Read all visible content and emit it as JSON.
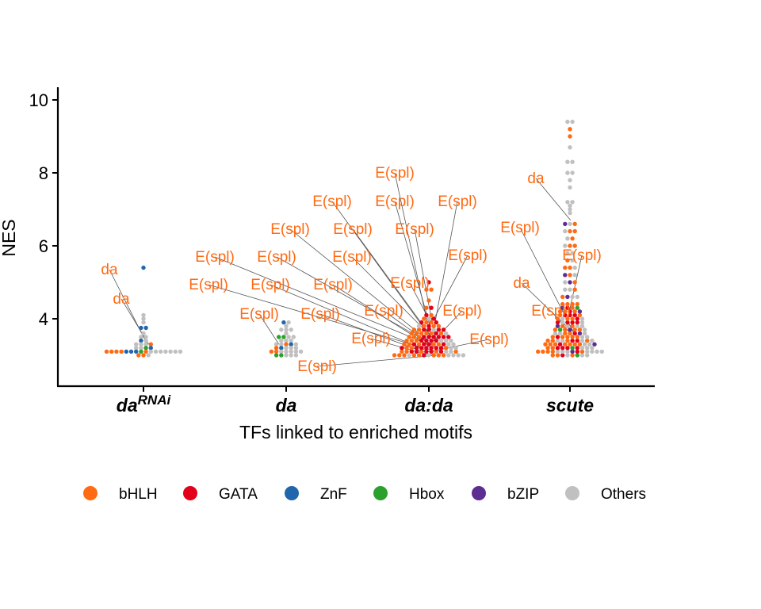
{
  "chart_data": {
    "type": "dotplot",
    "title": "",
    "xlabel": "TFs linked to enriched motifs",
    "ylabel": "NES",
    "ylim": [
      2.2,
      10.4
    ],
    "yticks": [
      4,
      6,
      8,
      10
    ],
    "categories": [
      {
        "id": "darnai",
        "base": "da",
        "sup": "RNAi"
      },
      {
        "id": "da",
        "base": "da",
        "sup": ""
      },
      {
        "id": "dada",
        "base": "da:da",
        "sup": ""
      },
      {
        "id": "scute",
        "base": "scute",
        "sup": ""
      }
    ],
    "legend": {
      "position": "bottom",
      "items": [
        {
          "name": "bHLH",
          "color": "#FF6A13"
        },
        {
          "name": "GATA",
          "color": "#E3001B"
        },
        {
          "name": "ZnF",
          "color": "#2166AC"
        },
        {
          "name": "Hbox",
          "color": "#2CA02C"
        },
        {
          "name": "bZIP",
          "color": "#5E2D91"
        },
        {
          "name": "Others",
          "color": "#C0C0C0"
        }
      ]
    },
    "points": [
      {
        "category": "darnai",
        "family": "ZnF",
        "nes": 5.4
      },
      {
        "category": "darnai",
        "family": "Others",
        "nes": 4.1
      },
      {
        "category": "darnai",
        "family": "Others",
        "nes": 4.0
      },
      {
        "category": "darnai",
        "family": "Others",
        "nes": 3.9
      },
      {
        "category": "darnai",
        "family": "ZnF",
        "nes": 3.75
      },
      {
        "category": "darnai",
        "family": "ZnF",
        "nes": 3.75
      },
      {
        "category": "darnai",
        "family": "Others",
        "nes": 3.6
      },
      {
        "category": "darnai",
        "family": "Others",
        "nes": 3.5
      },
      {
        "category": "darnai",
        "family": "Others",
        "nes": 3.5
      },
      {
        "category": "darnai",
        "family": "ZnF",
        "nes": 3.4
      },
      {
        "category": "darnai",
        "family": "Others",
        "nes": 3.4
      },
      {
        "category": "darnai",
        "family": "Others",
        "nes": 3.3
      },
      {
        "category": "darnai",
        "family": "Others",
        "nes": 3.3
      },
      {
        "category": "darnai",
        "family": "Others",
        "nes": 3.3
      },
      {
        "category": "darnai",
        "family": "bHLH",
        "nes": 3.3
      },
      {
        "category": "darnai",
        "family": "Others",
        "nes": 3.2
      },
      {
        "category": "darnai",
        "family": "Others",
        "nes": 3.2
      },
      {
        "category": "darnai",
        "family": "Hbox",
        "nes": 3.2
      },
      {
        "category": "darnai",
        "family": "ZnF",
        "nes": 3.2
      },
      {
        "category": "darnai",
        "family": "bHLH",
        "nes": 3.1
      },
      {
        "category": "darnai",
        "family": "bHLH",
        "nes": 3.1
      },
      {
        "category": "darnai",
        "family": "bHLH",
        "nes": 3.1
      },
      {
        "category": "darnai",
        "family": "bHLH",
        "nes": 3.1
      },
      {
        "category": "darnai",
        "family": "ZnF",
        "nes": 3.1
      },
      {
        "category": "darnai",
        "family": "ZnF",
        "nes": 3.1
      },
      {
        "category": "darnai",
        "family": "ZnF",
        "nes": 3.1
      },
      {
        "category": "darnai",
        "family": "Hbox",
        "nes": 3.1
      },
      {
        "category": "darnai",
        "family": "bHLH",
        "nes": 3.1
      },
      {
        "category": "darnai",
        "family": "Others",
        "nes": 3.1
      },
      {
        "category": "darnai",
        "family": "Others",
        "nes": 3.1
      },
      {
        "category": "darnai",
        "family": "Others",
        "nes": 3.1
      },
      {
        "category": "darnai",
        "family": "Others",
        "nes": 3.1
      },
      {
        "category": "darnai",
        "family": "Others",
        "nes": 3.1
      },
      {
        "category": "darnai",
        "family": "Others",
        "nes": 3.1
      },
      {
        "category": "darnai",
        "family": "Others",
        "nes": 3.1
      },
      {
        "category": "darnai",
        "family": "bHLH",
        "nes": 3.0
      },
      {
        "category": "darnai",
        "family": "bHLH",
        "nes": 3.0
      },
      {
        "category": "darnai",
        "family": "Others",
        "nes": 3.0
      },
      {
        "category": "da",
        "family": "ZnF",
        "nes": 3.9
      },
      {
        "category": "da",
        "family": "Others",
        "nes": 3.9
      },
      {
        "category": "da",
        "family": "Others",
        "nes": 3.8
      },
      {
        "category": "da",
        "family": "Others",
        "nes": 3.7
      },
      {
        "category": "da",
        "family": "Others",
        "nes": 3.7
      },
      {
        "category": "da",
        "family": "Others",
        "nes": 3.7
      },
      {
        "category": "da",
        "family": "Others",
        "nes": 3.6
      },
      {
        "category": "da",
        "family": "Hbox",
        "nes": 3.5
      },
      {
        "category": "da",
        "family": "Hbox",
        "nes": 3.5
      },
      {
        "category": "da",
        "family": "Others",
        "nes": 3.5
      },
      {
        "category": "da",
        "family": "Others",
        "nes": 3.5
      },
      {
        "category": "da",
        "family": "Others",
        "nes": 3.4
      },
      {
        "category": "da",
        "family": "Others",
        "nes": 3.4
      },
      {
        "category": "da",
        "family": "Others",
        "nes": 3.4
      },
      {
        "category": "da",
        "family": "Others",
        "nes": 3.3
      },
      {
        "category": "da",
        "family": "Others",
        "nes": 3.3
      },
      {
        "category": "da",
        "family": "bHLH",
        "nes": 3.3
      },
      {
        "category": "da",
        "family": "ZnF",
        "nes": 3.3
      },
      {
        "category": "da",
        "family": "Others",
        "nes": 3.3
      },
      {
        "category": "da",
        "family": "bHLH",
        "nes": 3.2
      },
      {
        "category": "da",
        "family": "ZnF",
        "nes": 3.2
      },
      {
        "category": "da",
        "family": "Others",
        "nes": 3.2
      },
      {
        "category": "da",
        "family": "Others",
        "nes": 3.2
      },
      {
        "category": "da",
        "family": "Others",
        "nes": 3.2
      },
      {
        "category": "da",
        "family": "bHLH",
        "nes": 3.1
      },
      {
        "category": "da",
        "family": "bHLH",
        "nes": 3.1
      },
      {
        "category": "da",
        "family": "Others",
        "nes": 3.1
      },
      {
        "category": "da",
        "family": "Others",
        "nes": 3.1
      },
      {
        "category": "da",
        "family": "Others",
        "nes": 3.1
      },
      {
        "category": "da",
        "family": "Others",
        "nes": 3.1
      },
      {
        "category": "da",
        "family": "Others",
        "nes": 3.1
      },
      {
        "category": "da",
        "family": "Hbox",
        "nes": 3.0
      },
      {
        "category": "da",
        "family": "Hbox",
        "nes": 3.0
      },
      {
        "category": "da",
        "family": "Others",
        "nes": 3.0
      },
      {
        "category": "da",
        "family": "Others",
        "nes": 3.0
      },
      {
        "category": "da",
        "family": "Others",
        "nes": 3.0
      },
      {
        "category": "scute",
        "family": "Others",
        "nes": 9.4
      },
      {
        "category": "scute",
        "family": "Others",
        "nes": 9.4
      },
      {
        "category": "scute",
        "family": "bHLH",
        "nes": 9.2
      },
      {
        "category": "scute",
        "family": "bHLH",
        "nes": 9.0
      },
      {
        "category": "scute",
        "family": "Others",
        "nes": 8.7
      },
      {
        "category": "scute",
        "family": "Others",
        "nes": 8.3
      },
      {
        "category": "scute",
        "family": "Others",
        "nes": 8.3
      },
      {
        "category": "scute",
        "family": "Others",
        "nes": 8.0
      },
      {
        "category": "scute",
        "family": "Others",
        "nes": 8.0
      },
      {
        "category": "scute",
        "family": "Others",
        "nes": 7.8
      },
      {
        "category": "scute",
        "family": "Others",
        "nes": 7.6
      },
      {
        "category": "scute",
        "family": "Others",
        "nes": 7.2
      },
      {
        "category": "scute",
        "family": "Others",
        "nes": 7.2
      },
      {
        "category": "scute",
        "family": "Others",
        "nes": 7.1
      },
      {
        "category": "scute",
        "family": "Others",
        "nes": 7.0
      },
      {
        "category": "scute",
        "family": "Others",
        "nes": 6.9
      }
    ],
    "annotations": [
      {
        "category": "darnai",
        "text": "da",
        "nes": 3.4
      },
      {
        "category": "darnai",
        "text": "da",
        "nes": 3.3
      },
      {
        "category": "da",
        "text": "E(spl)",
        "nes": 3.3
      },
      {
        "category": "dada",
        "text": "E(spl)",
        "nes": 3.0
      },
      {
        "category": "dada",
        "text": "E(spl)",
        "nes": 3.0
      },
      {
        "category": "dada",
        "text": "E(spl)",
        "nes": 3.0
      },
      {
        "category": "dada",
        "text": "E(spl)",
        "nes": 3.1
      },
      {
        "category": "dada",
        "text": "E(spl)",
        "nes": 3.1
      },
      {
        "category": "dada",
        "text": "E(spl)",
        "nes": 3.2
      },
      {
        "category": "dada",
        "text": "E(spl)",
        "nes": 3.2
      },
      {
        "category": "dada",
        "text": "E(spl)",
        "nes": 3.3
      },
      {
        "category": "dada",
        "text": "E(spl)",
        "nes": 3.3
      },
      {
        "category": "dada",
        "text": "E(spl)",
        "nes": 3.4
      },
      {
        "category": "dada",
        "text": "E(spl)",
        "nes": 3.4
      },
      {
        "category": "dada",
        "text": "E(spl)",
        "nes": 3.5
      },
      {
        "category": "dada",
        "text": "E(spl)",
        "nes": 3.5
      },
      {
        "category": "dada",
        "text": "E(spl)",
        "nes": 3.6
      },
      {
        "category": "dada",
        "text": "E(spl)",
        "nes": 3.7
      },
      {
        "category": "dada",
        "text": "E(spl)",
        "nes": 3.8
      },
      {
        "category": "dada",
        "text": "E(spl)",
        "nes": 3.9
      },
      {
        "category": "dada",
        "text": "E(spl)",
        "nes": 3.9
      },
      {
        "category": "dada",
        "text": "E(spl)",
        "nes": 4.0
      },
      {
        "category": "dada",
        "text": "E(spl)",
        "nes": 3.2
      },
      {
        "category": "dada",
        "text": "E(spl)",
        "nes": 3.1
      },
      {
        "category": "scute",
        "text": "da",
        "nes": 6.7
      },
      {
        "category": "scute",
        "text": "E(spl)",
        "nes": 3.6
      },
      {
        "category": "scute",
        "text": "E(spl)",
        "nes": 3.9
      },
      {
        "category": "scute",
        "text": "da",
        "nes": 3.7
      },
      {
        "category": "scute",
        "text": "E(spl)",
        "nes": 3.5
      }
    ]
  }
}
